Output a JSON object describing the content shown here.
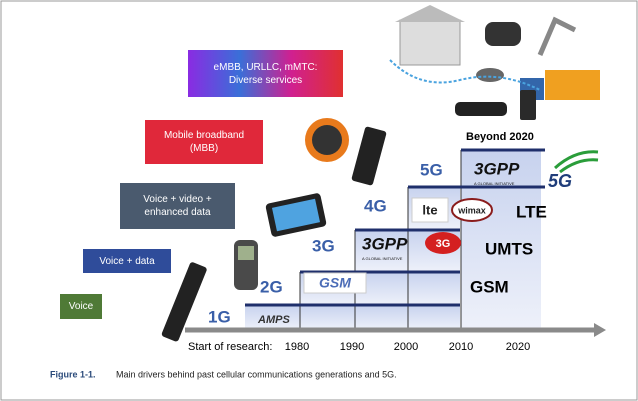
{
  "services": [
    "eMBB, URLLC, mMTC: Diverse services",
    "Mobile broadband (MBB)",
    "Voice + video + enhanced data",
    "Voice + data",
    "Voice"
  ],
  "generations": [
    "1G",
    "2G",
    "3G",
    "4G",
    "5G"
  ],
  "technologies": [
    "AMPS",
    "GSM",
    "UMTS",
    "LTE"
  ],
  "beyond": "Beyond 2020",
  "logos": {
    "gsm": "GSM",
    "threegpp": "3GPP",
    "initiative": "A GLOBAL INITIATIVE",
    "threeg": "3G",
    "lte": "lte",
    "wimax": "wimax",
    "fiveg": "5G"
  },
  "axis": {
    "label": "Start of research:",
    "years": [
      1980,
      1990,
      2000,
      2010,
      2020
    ]
  },
  "caption": {
    "number": "Figure 1-1.",
    "text": "Main drivers behind past cellular communications generations and 5G."
  }
}
